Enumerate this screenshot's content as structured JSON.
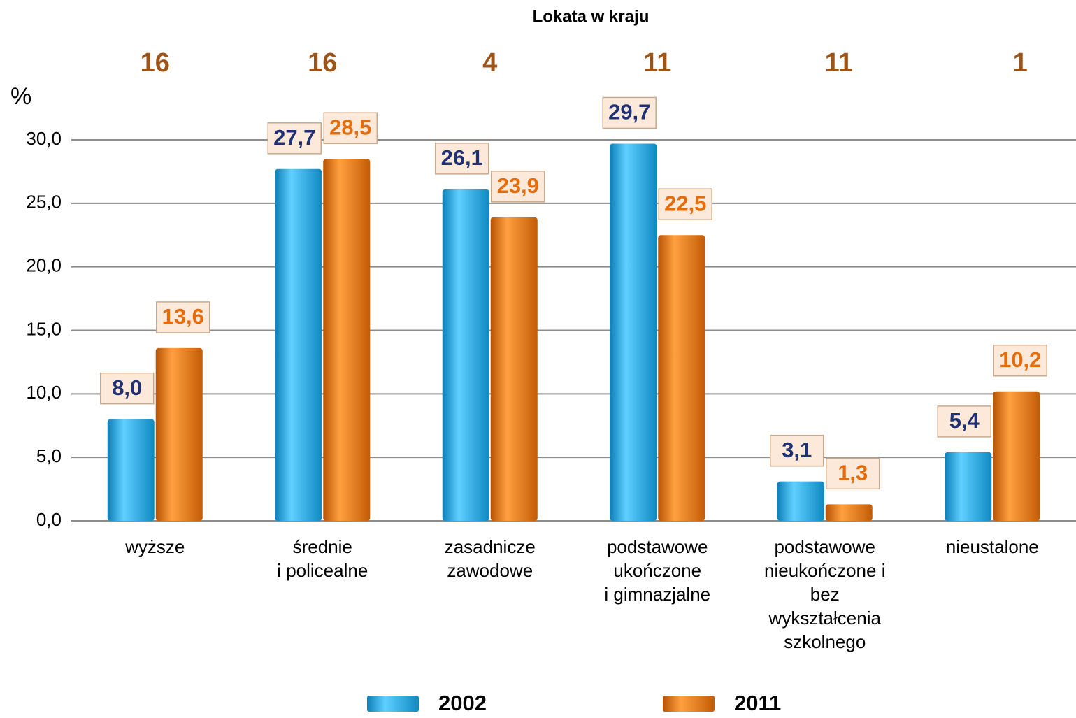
{
  "chart_data": {
    "type": "bar",
    "title": "Lokata w kraju",
    "ranks": [
      16,
      16,
      4,
      11,
      11,
      1
    ],
    "ylabel": "%",
    "categories": [
      "wyższe",
      "średnie\ni policealne",
      "zasadnicze\nzawodowe",
      "podstawowe\nukończone\ni gimnazjalne",
      "podstawowe\nnieukończone i\nbez\nwykształcenia\nszkolnego",
      "nieustalone"
    ],
    "series": [
      {
        "name": "2002",
        "color": "#1aa3dc",
        "label_color": "#1f3172",
        "values": [
          8.0,
          27.7,
          26.1,
          29.7,
          3.1,
          5.4
        ],
        "value_labels": [
          "8,0",
          "27,7",
          "26,1",
          "29,7",
          "3,1",
          "5,4"
        ]
      },
      {
        "name": "2011",
        "color": "#e8720c",
        "label_color": "#e46c0a",
        "values": [
          13.6,
          28.5,
          23.9,
          22.5,
          1.3,
          10.2
        ],
        "value_labels": [
          "13,6",
          "28,5",
          "23,9",
          "22,5",
          "1,3",
          "10,2"
        ]
      }
    ],
    "ylim": [
      0,
      30
    ],
    "yticks": [
      {
        "value": 0,
        "label": "0,0"
      },
      {
        "value": 5,
        "label": "5,0"
      },
      {
        "value": 10,
        "label": "10,0"
      },
      {
        "value": 15,
        "label": "15,0"
      },
      {
        "value": 20,
        "label": "20,0"
      },
      {
        "value": 25,
        "label": "25,0"
      },
      {
        "value": 30,
        "label": "30,0"
      }
    ],
    "grid": true
  }
}
